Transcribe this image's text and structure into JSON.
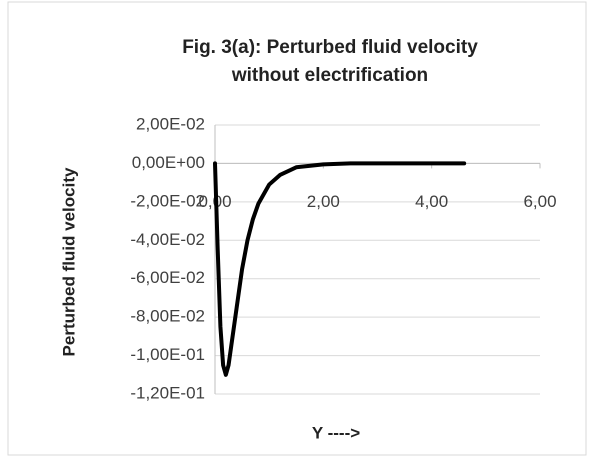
{
  "chart_data": {
    "type": "line",
    "title": [
      "Fig. 3(a): Perturbed fluid velocity",
      "without electrification"
    ],
    "x_label": "Y  ---->",
    "y_label": "Perturbed fluid velocity",
    "x": [
      0,
      0.05,
      0.1,
      0.15,
      0.2,
      0.25,
      0.3,
      0.4,
      0.5,
      0.6,
      0.7,
      0.8,
      1.0,
      1.2,
      1.5,
      2.0,
      2.5,
      3.0,
      3.5,
      4.0,
      4.6
    ],
    "series": [
      {
        "name": "Perturbed fluid velocity",
        "color": "#000000",
        "values": [
          0,
          -0.045,
          -0.085,
          -0.105,
          -0.11,
          -0.105,
          -0.095,
          -0.075,
          -0.055,
          -0.04,
          -0.029,
          -0.021,
          -0.011,
          -0.006,
          -0.002,
          -0.0005,
          0,
          0,
          0,
          0,
          0
        ]
      }
    ],
    "xlim": [
      0,
      6
    ],
    "xticks": [
      {
        "value": 0,
        "label": "0,00"
      },
      {
        "value": 2,
        "label": "2,00"
      },
      {
        "value": 4,
        "label": "4,00"
      },
      {
        "value": 6,
        "label": "6,00"
      }
    ],
    "ylim": [
      -0.12,
      0.02
    ],
    "yticks": [
      {
        "value": 0.02,
        "label": "2,00E-02"
      },
      {
        "value": 0,
        "label": "0,00E+00"
      },
      {
        "value": -0.02,
        "label": "-2,00E-02"
      },
      {
        "value": -0.04,
        "label": "-4,00E-02"
      },
      {
        "value": -0.06,
        "label": "-6,00E-02"
      },
      {
        "value": -0.08,
        "label": "-8,00E-02"
      },
      {
        "value": -0.1,
        "label": "-1,00E-01"
      },
      {
        "value": -0.12,
        "label": "-1,20E-01"
      }
    ],
    "grid": true
  }
}
